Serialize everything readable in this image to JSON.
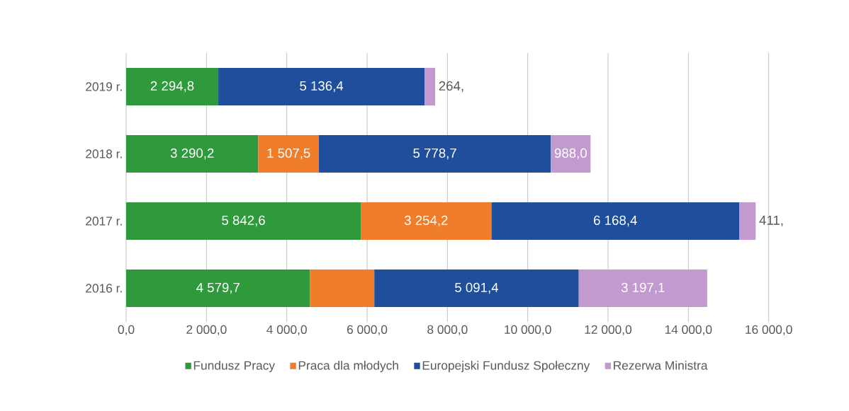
{
  "chart_data": {
    "type": "bar",
    "orientation": "horizontal",
    "stacked": true,
    "categories": [
      "2019 r.",
      "2018 r.",
      "2017 r.",
      "2016 r."
    ],
    "series": [
      {
        "name": "Fundusz Pracy",
        "color": "#2e9a3c",
        "values": [
          2294.8,
          3290.2,
          5842.6,
          4579.7
        ],
        "value_labels": [
          "2 294,8",
          "3 290,2",
          "5 842,6",
          "4 579,7"
        ]
      },
      {
        "name": "Praca dla młodych",
        "color": "#f07d2a",
        "values": [
          null,
          1507.5,
          3254.2,
          1600
        ],
        "value_labels": [
          null,
          "1 507,5",
          "3 254,2",
          null
        ]
      },
      {
        "name": "Europejski Fundusz Społeczny",
        "color": "#1f4f9c",
        "values": [
          5136.4,
          5778.7,
          6168.4,
          5091.4
        ],
        "value_labels": [
          "5 136,4",
          "5 778,7",
          "6 168,4",
          "5 091,4"
        ]
      },
      {
        "name": "Rezerwa Ministra",
        "color": "#c29ad0",
        "values": [
          264,
          988.0,
          411,
          3197.1
        ],
        "value_labels": [
          "264,",
          "988,0",
          "411,",
          "3 197,1"
        ]
      }
    ],
    "xlim": [
      0,
      16000
    ],
    "xticks": [
      {
        "value": 0,
        "label": "0,0"
      },
      {
        "value": 2000,
        "label": "2 000,0"
      },
      {
        "value": 4000,
        "label": "4 000,0"
      },
      {
        "value": 6000,
        "label": "6 000,0"
      },
      {
        "value": 8000,
        "label": "8 000,0"
      },
      {
        "value": 10000,
        "label": "10 000,0"
      },
      {
        "value": 12000,
        "label": "12 000,0"
      },
      {
        "value": 14000,
        "label": "14 000,0"
      },
      {
        "value": 16000,
        "label": "16 000,0"
      }
    ],
    "grid": "x",
    "legend": "bottom"
  }
}
